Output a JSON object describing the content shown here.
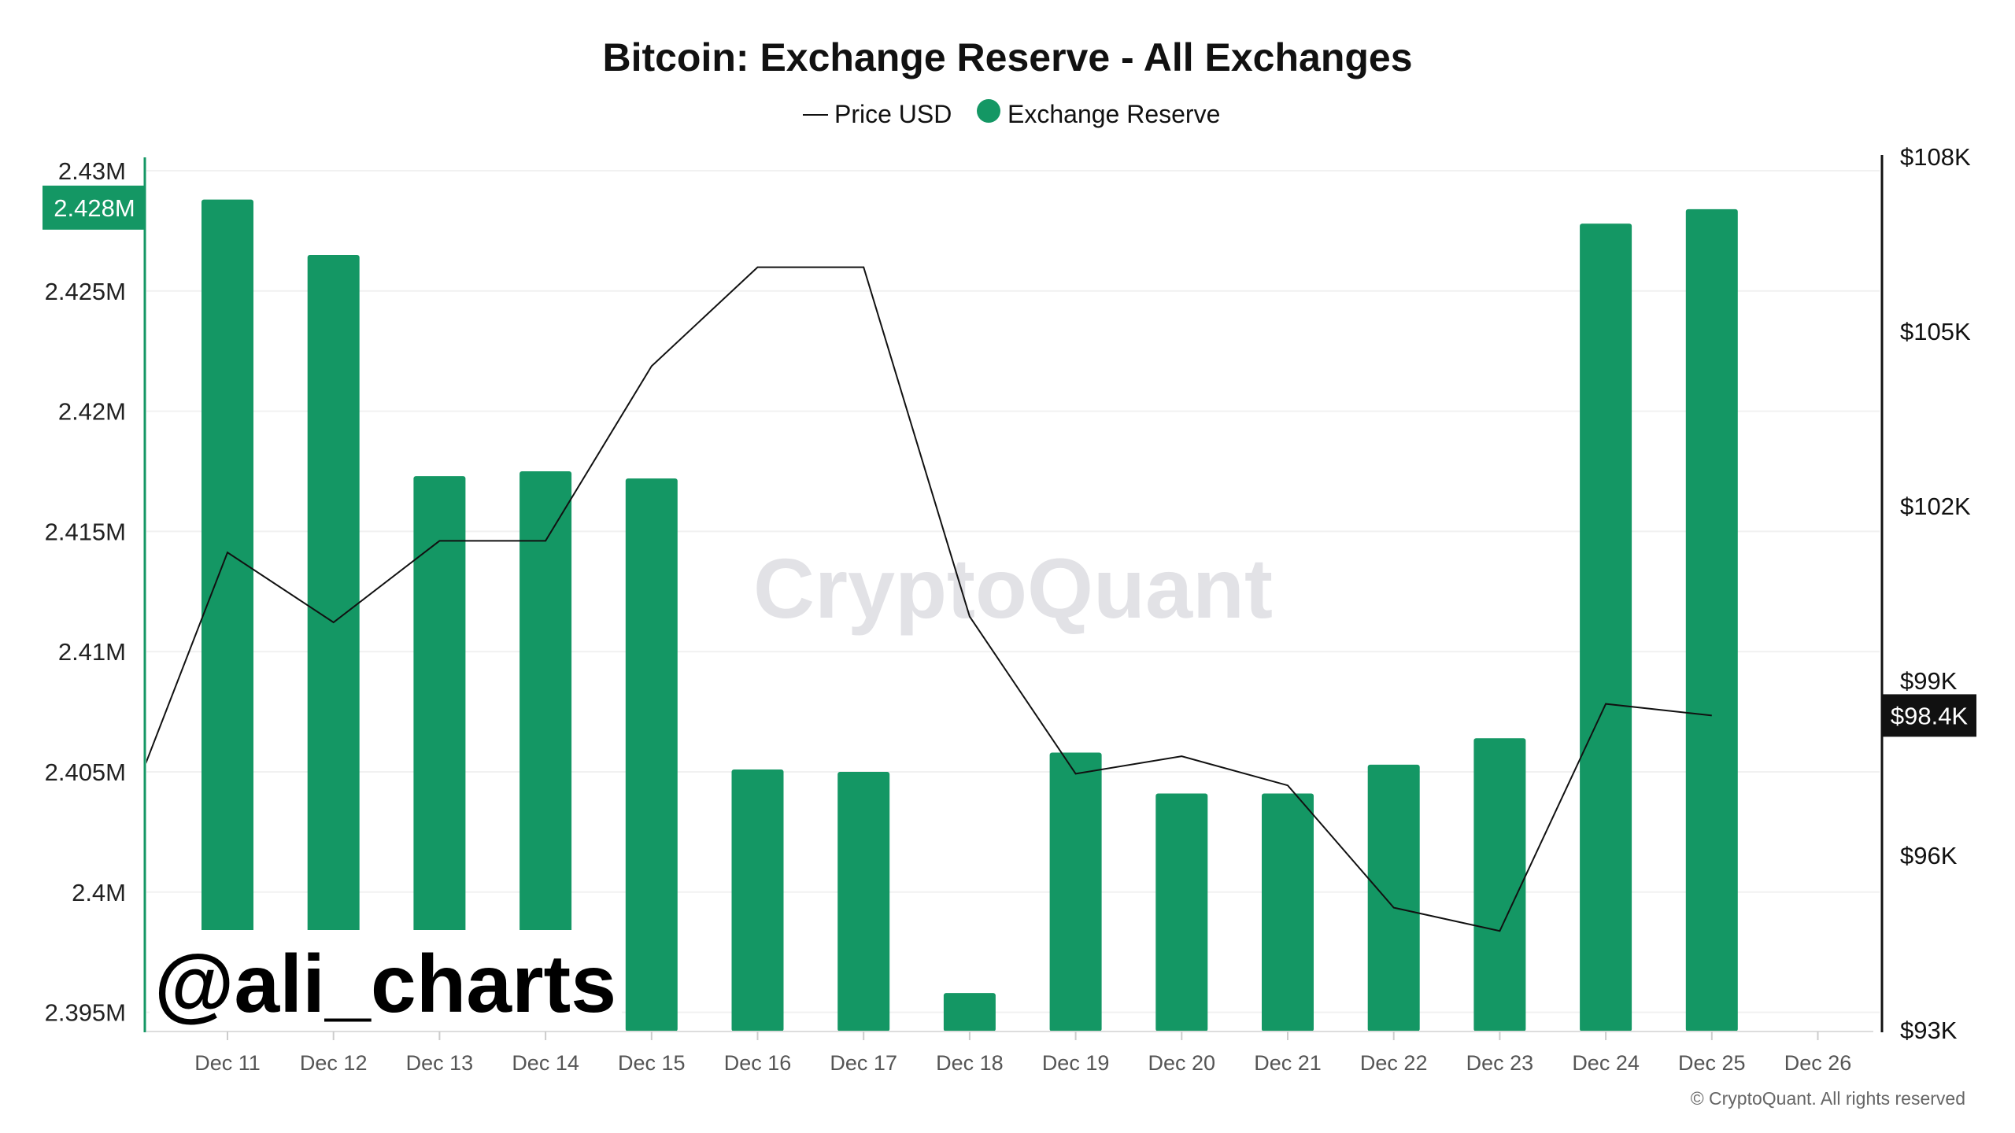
{
  "chart_data": {
    "type": "bar",
    "title": "Bitcoin: Exchange Reserve - All Exchanges",
    "legend": [
      {
        "label": "Price USD",
        "symbol": "line",
        "color": "#111111"
      },
      {
        "label": "Exchange Reserve",
        "symbol": "dot",
        "color": "#149764"
      }
    ],
    "legend_position": "top-center",
    "categories": [
      "Dec 11",
      "Dec 12",
      "Dec 13",
      "Dec 14",
      "Dec 15",
      "Dec 16",
      "Dec 17",
      "Dec 18",
      "Dec 19",
      "Dec 20",
      "Dec 21",
      "Dec 22",
      "Dec 23",
      "Dec 24",
      "Dec 25",
      "Dec 26"
    ],
    "series": [
      {
        "name": "Exchange Reserve",
        "type": "bar",
        "axis": "left",
        "color": "#149764",
        "values": [
          2.4288,
          2.4265,
          2.4173,
          2.4175,
          2.4172,
          2.4051,
          2.405,
          2.3958,
          2.4058,
          2.4041,
          2.4041,
          2.4053,
          2.4064,
          2.4278,
          2.4284,
          null
        ]
      },
      {
        "name": "Price USD",
        "type": "line",
        "axis": "right",
        "color": "#111111",
        "leading_value_dec10": 96.5,
        "values": [
          101.2,
          100.0,
          101.4,
          101.4,
          104.4,
          106.1,
          106.1,
          100.1,
          97.4,
          97.7,
          97.2,
          95.1,
          94.7,
          98.6,
          98.4,
          null
        ]
      }
    ],
    "left_axis": {
      "unit": "M BTC",
      "ylim": [
        2.3942,
        2.4306
      ],
      "ticks": [
        2.43,
        2.425,
        2.42,
        2.415,
        2.41,
        2.405,
        2.4,
        2.395
      ],
      "tick_labels": [
        "2.43M",
        "2.425M",
        "2.42M",
        "2.415M",
        "2.41M",
        "2.405M",
        "2.4M",
        "2.395M"
      ],
      "current_label": "2.428M",
      "current_value": 2.4284,
      "current_color": "#149764"
    },
    "right_axis": {
      "unit": "K USD",
      "ylim": [
        93,
        108
      ],
      "ticks": [
        108,
        105,
        102,
        99,
        96,
        93
      ],
      "tick_labels": [
        "$108K",
        "$105K",
        "$102K",
        "$99K",
        "$96K",
        "$93K"
      ],
      "current_label": "$98.4K",
      "current_value": 98.4
    },
    "grid": true,
    "watermark": "CryptoQuant",
    "overlay_handle": "@ali_charts",
    "copyright": "© CryptoQuant. All rights reserved"
  }
}
